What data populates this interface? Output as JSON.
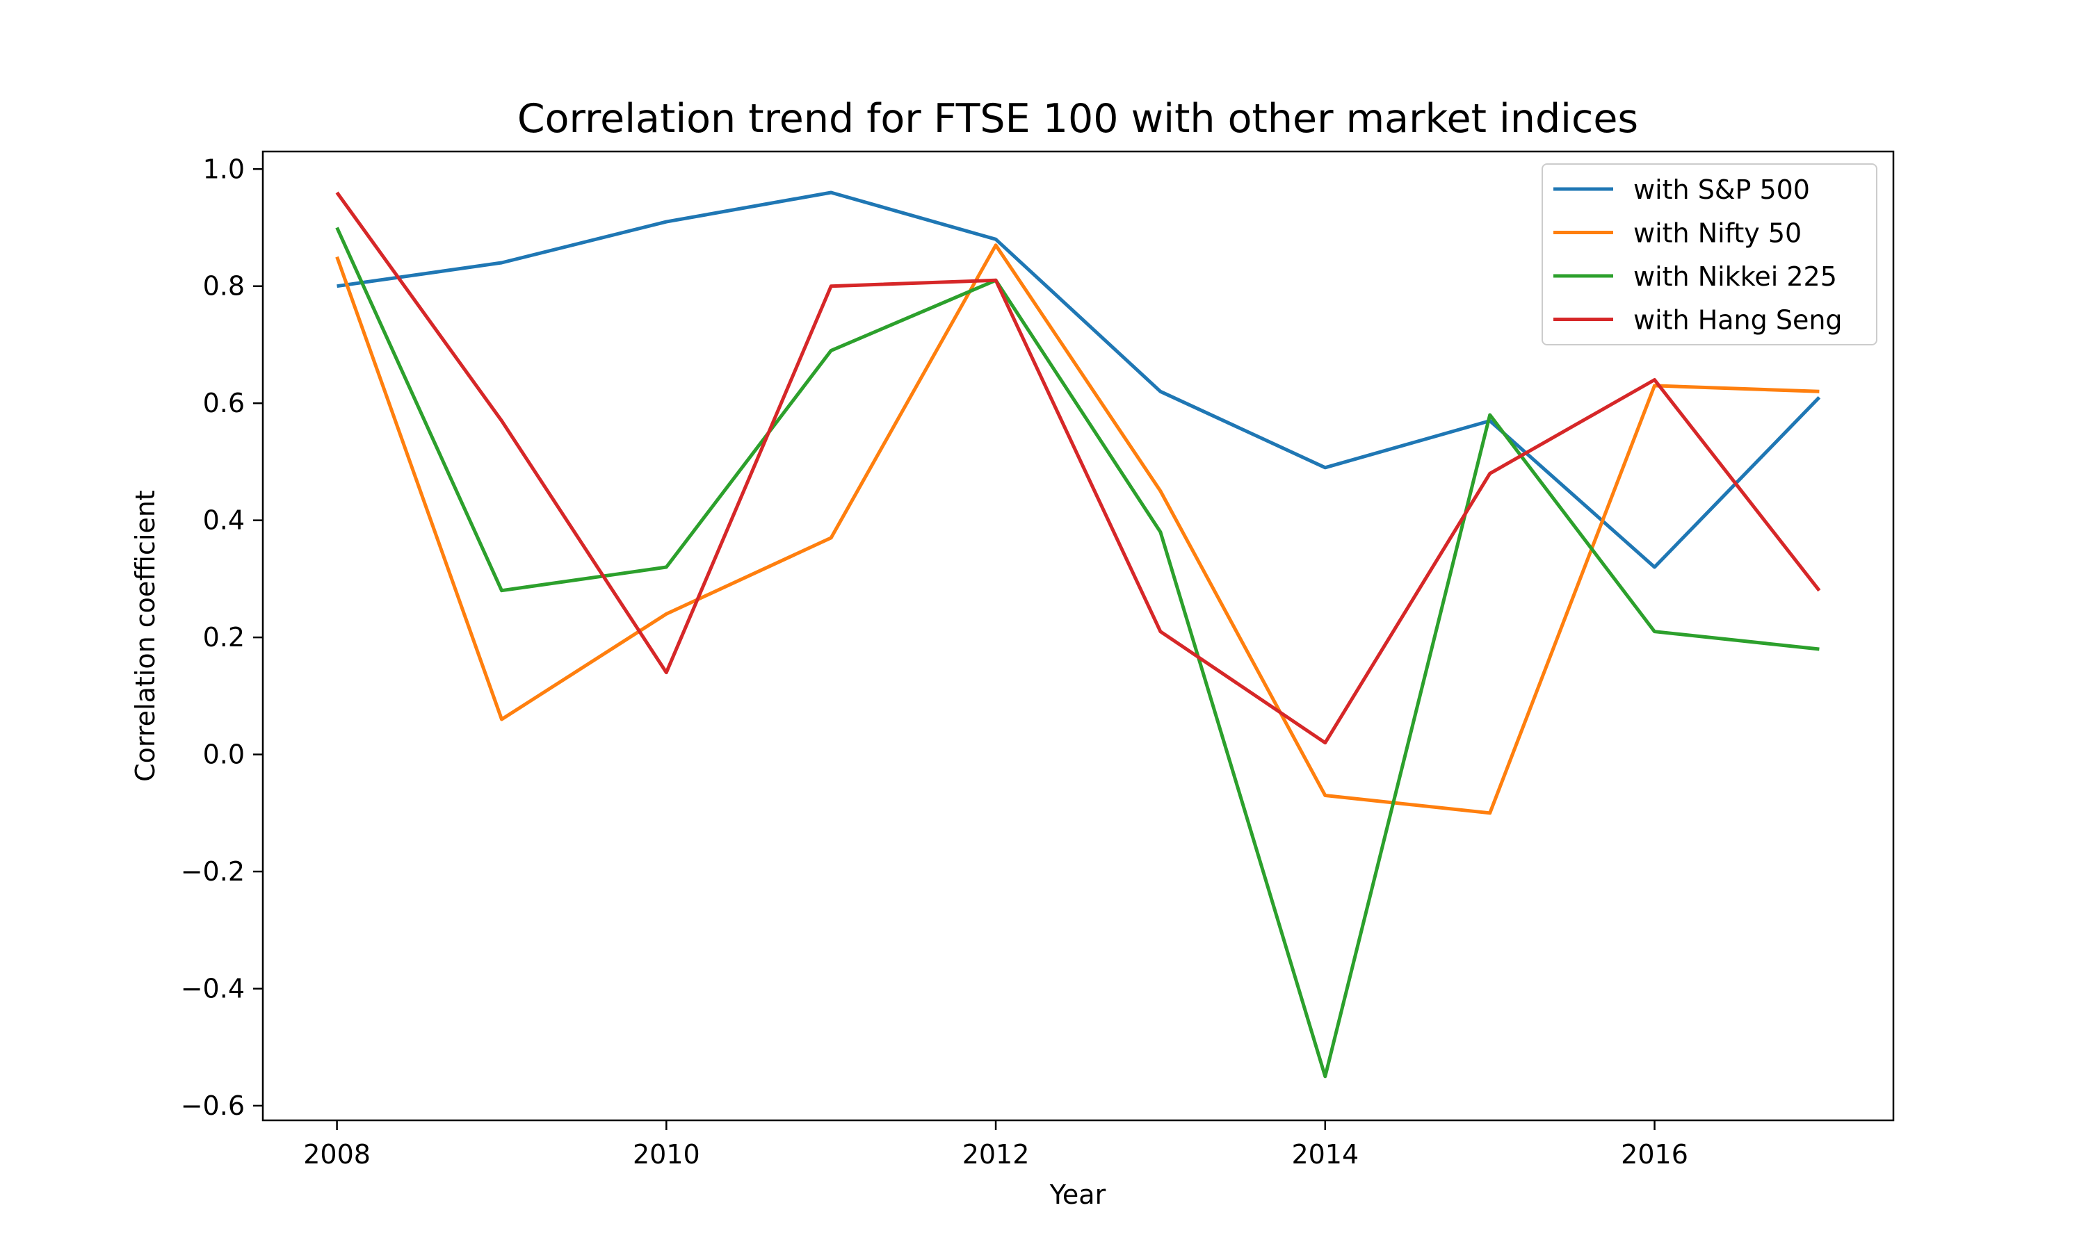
{
  "chart_data": {
    "type": "line",
    "title": "Correlation trend for FTSE 100 with other market indices",
    "xlabel": "Year",
    "ylabel": "Correlation coefficient",
    "x": [
      2008,
      2009,
      2010,
      2011,
      2012,
      2013,
      2014,
      2015,
      2016,
      2017
    ],
    "xlim": [
      2007.55,
      2017.45
    ],
    "ylim": [
      -0.625,
      1.03
    ],
    "x_ticks": [
      2008,
      2010,
      2012,
      2014,
      2016
    ],
    "x_tick_labels": [
      "2008",
      "2010",
      "2012",
      "2014",
      "2016"
    ],
    "y_ticks": [
      -0.6,
      -0.4,
      -0.2,
      0.0,
      0.2,
      0.4,
      0.6,
      0.8,
      1.0
    ],
    "y_tick_labels": [
      "−0.6",
      "−0.4",
      "−0.2",
      "0.0",
      "0.2",
      "0.4",
      "0.6",
      "0.8",
      "1.0"
    ],
    "grid": false,
    "legend_position": "top-right",
    "series": [
      {
        "name": "with S&P 500",
        "color": "#1f77b4",
        "values": [
          0.8,
          0.84,
          0.91,
          0.96,
          0.88,
          0.62,
          0.49,
          0.57,
          0.32,
          0.61
        ]
      },
      {
        "name": "with Nifty 50",
        "color": "#ff7f0e",
        "values": [
          0.85,
          0.06,
          0.24,
          0.37,
          0.87,
          0.45,
          -0.07,
          -0.1,
          0.63,
          0.62
        ]
      },
      {
        "name": "with Nikkei 225",
        "color": "#2ca02c",
        "values": [
          0.9,
          0.28,
          0.32,
          0.69,
          0.81,
          0.38,
          -0.55,
          0.58,
          0.21,
          0.18
        ]
      },
      {
        "name": "with Hang Seng",
        "color": "#d62728",
        "values": [
          0.96,
          0.57,
          0.14,
          0.8,
          0.81,
          0.21,
          0.02,
          0.48,
          0.64,
          0.28
        ]
      }
    ]
  }
}
